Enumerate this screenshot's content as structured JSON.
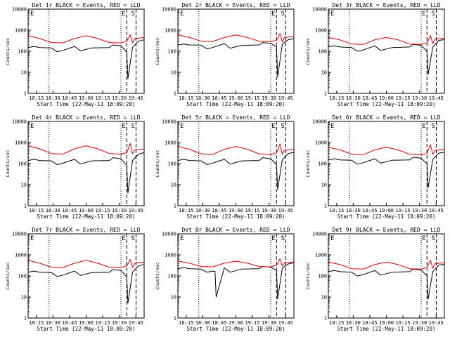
{
  "figure": {
    "colors": {
      "events": "#000000",
      "lld": "#e00000",
      "axes": "#000000",
      "background": "#ffffff"
    }
  },
  "chart_data": [
    {
      "type": "line",
      "title": "Det 1r BLACK = Events, RED = LLD",
      "xlabel": "Start Time (22-May-11 18:09:20)",
      "ylabel": "Counts/sec",
      "xticks": [
        "18:15",
        "18:30",
        "18:45",
        "19:00",
        "19:15",
        "19:30",
        "19:45"
      ],
      "yticks": [
        "1",
        "10",
        "100",
        "1000",
        "10000"
      ],
      "yscale": "log",
      "xlim": [
        0,
        1.0
      ],
      "ylim": [
        1,
        10000
      ],
      "grid": false,
      "legend": "none",
      "annotations": [
        "E",
        "E",
        "S"
      ],
      "series": [
        {
          "name": "Events",
          "color": "#000000",
          "x": [
            0.0,
            0.05,
            0.1,
            0.2,
            0.25,
            0.3,
            0.4,
            0.45,
            0.55,
            0.7,
            0.73,
            0.8,
            0.85,
            0.86,
            0.9,
            0.95,
            1.0
          ],
          "y": [
            150,
            170,
            150,
            145,
            95,
            110,
            170,
            105,
            145,
            150,
            200,
            180,
            90,
            5,
            150,
            300,
            350
          ]
        },
        {
          "name": "LLD",
          "color": "#e00000",
          "x": [
            0.0,
            0.1,
            0.2,
            0.3,
            0.4,
            0.5,
            0.6,
            0.7,
            0.8,
            0.85,
            0.88,
            0.9,
            0.92,
            1.0
          ],
          "y": [
            550,
            400,
            260,
            250,
            400,
            550,
            400,
            260,
            250,
            300,
            600,
            250,
            400,
            450
          ]
        }
      ]
    },
    {
      "type": "line",
      "title": "Det 2r BLACK = Events, RED = LLD",
      "xlabel": "Start Time (22-May-11 18:09:20)",
      "ylabel": "Counts/sec",
      "xticks": [
        "18:15",
        "18:30",
        "18:45",
        "19:00",
        "19:15",
        "19:30",
        "19:45"
      ],
      "yticks": [
        "1",
        "10",
        "100",
        "1000",
        "10000"
      ],
      "yscale": "log",
      "xlim": [
        0,
        1.0
      ],
      "ylim": [
        1,
        10000
      ],
      "grid": false,
      "legend": "none",
      "annotations": [
        "E",
        "E",
        "S"
      ],
      "series": [
        {
          "name": "Events",
          "color": "#000000",
          "x": [
            0.0,
            0.05,
            0.1,
            0.2,
            0.25,
            0.3,
            0.4,
            0.45,
            0.55,
            0.7,
            0.73,
            0.8,
            0.85,
            0.86,
            0.9,
            0.95,
            1.0
          ],
          "y": [
            200,
            220,
            200,
            195,
            130,
            150,
            230,
            140,
            190,
            200,
            260,
            240,
            160,
            6,
            220,
            350,
            400
          ]
        },
        {
          "name": "LLD",
          "color": "#e00000",
          "x": [
            0.0,
            0.1,
            0.2,
            0.3,
            0.4,
            0.5,
            0.6,
            0.7,
            0.8,
            0.85,
            0.88,
            0.9,
            0.92,
            1.0
          ],
          "y": [
            600,
            450,
            300,
            290,
            450,
            600,
            450,
            300,
            290,
            320,
            700,
            280,
            450,
            500
          ]
        }
      ]
    },
    {
      "type": "line",
      "title": "Det 3r BLACK = Events, RED = LLD",
      "xlabel": "Start Time (22-May-11 18:09:20)",
      "ylabel": "Counts/sec",
      "xticks": [
        "18:15",
        "18:30",
        "18:45",
        "19:00",
        "19:15",
        "19:30",
        "19:45"
      ],
      "yticks": [
        "1",
        "10",
        "100",
        "1000",
        "10000"
      ],
      "yscale": "log",
      "xlim": [
        0,
        1.0
      ],
      "ylim": [
        1,
        10000
      ],
      "grid": false,
      "legend": "none",
      "annotations": [
        "E",
        "E",
        "S"
      ],
      "series": [
        {
          "name": "Events",
          "color": "#000000",
          "x": [
            0.0,
            0.05,
            0.1,
            0.2,
            0.25,
            0.3,
            0.4,
            0.45,
            0.55,
            0.7,
            0.73,
            0.8,
            0.85,
            0.86,
            0.9,
            0.95,
            1.0
          ],
          "y": [
            160,
            180,
            160,
            150,
            100,
            115,
            180,
            110,
            150,
            160,
            210,
            190,
            100,
            8,
            160,
            320,
            360
          ]
        },
        {
          "name": "LLD",
          "color": "#e00000",
          "x": [
            0.0,
            0.1,
            0.2,
            0.3,
            0.4,
            0.5,
            0.6,
            0.7,
            0.8,
            0.85,
            0.88,
            0.9,
            0.92,
            1.0
          ],
          "y": [
            450,
            350,
            220,
            210,
            350,
            450,
            350,
            220,
            210,
            250,
            550,
            230,
            380,
            420
          ]
        }
      ]
    },
    {
      "type": "line",
      "title": "Det 4r BLACK = Events, RED = LLD",
      "xlabel": "Start Time (22-May-11 18:09:20)",
      "ylabel": "Counts/sec",
      "xticks": [
        "18:15",
        "18:30",
        "18:45",
        "19:00",
        "19:15",
        "19:30",
        "19:45"
      ],
      "yticks": [
        "1",
        "10",
        "100",
        "1000",
        "10000"
      ],
      "yscale": "log",
      "xlim": [
        0,
        1.0
      ],
      "ylim": [
        1,
        10000
      ],
      "grid": false,
      "legend": "none",
      "annotations": [
        "E",
        "E",
        "S"
      ],
      "series": [
        {
          "name": "Events",
          "color": "#000000",
          "x": [
            0.0,
            0.05,
            0.1,
            0.2,
            0.25,
            0.3,
            0.4,
            0.45,
            0.55,
            0.7,
            0.73,
            0.8,
            0.85,
            0.86,
            0.9,
            0.95,
            1.0
          ],
          "y": [
            140,
            160,
            140,
            135,
            90,
            105,
            160,
            95,
            135,
            140,
            190,
            170,
            80,
            4,
            140,
            280,
            330
          ]
        },
        {
          "name": "LLD",
          "color": "#e00000",
          "x": [
            0.0,
            0.1,
            0.2,
            0.3,
            0.4,
            0.5,
            0.6,
            0.7,
            0.8,
            0.85,
            0.88,
            0.9,
            0.92,
            1.0
          ],
          "y": [
            700,
            500,
            300,
            280,
            500,
            700,
            500,
            300,
            280,
            330,
            900,
            300,
            450,
            500
          ]
        }
      ]
    },
    {
      "type": "line",
      "title": "Det 5r BLACK = Events, RED = LLD",
      "xlabel": "Start Time (22-May-11 18:09:20)",
      "ylabel": "Counts/sec",
      "xticks": [
        "18:15",
        "18:30",
        "18:45",
        "19:00",
        "19:15",
        "19:30",
        "19:45"
      ],
      "yticks": [
        "1",
        "10",
        "100",
        "1000",
        "10000"
      ],
      "yscale": "log",
      "xlim": [
        0,
        1.0
      ],
      "ylim": [
        1,
        10000
      ],
      "grid": false,
      "legend": "none",
      "annotations": [
        "E",
        "E",
        "S"
      ],
      "series": [
        {
          "name": "Events",
          "color": "#000000",
          "x": [
            0.0,
            0.05,
            0.1,
            0.2,
            0.25,
            0.3,
            0.4,
            0.45,
            0.55,
            0.7,
            0.73,
            0.8,
            0.85,
            0.86,
            0.9,
            0.95,
            1.0
          ],
          "y": [
            140,
            160,
            140,
            135,
            90,
            105,
            160,
            95,
            135,
            140,
            190,
            170,
            90,
            6,
            150,
            300,
            340
          ]
        },
        {
          "name": "LLD",
          "color": "#e00000",
          "x": [
            0.0,
            0.1,
            0.2,
            0.3,
            0.4,
            0.5,
            0.6,
            0.7,
            0.8,
            0.85,
            0.88,
            0.9,
            0.92,
            1.0
          ],
          "y": [
            650,
            480,
            290,
            270,
            480,
            650,
            480,
            290,
            270,
            320,
            850,
            290,
            430,
            480
          ]
        }
      ]
    },
    {
      "type": "line",
      "title": "Det 6r BLACK = Events, RED = LLD",
      "xlabel": "Start Time (22-May-11 18:09:20)",
      "ylabel": "Counts/sec",
      "xticks": [
        "18:15",
        "18:30",
        "18:45",
        "19:00",
        "19:15",
        "19:30",
        "19:45"
      ],
      "yticks": [
        "1",
        "10",
        "100",
        "1000",
        "10000"
      ],
      "yscale": "log",
      "xlim": [
        0,
        1.0
      ],
      "ylim": [
        1,
        10000
      ],
      "grid": false,
      "legend": "none",
      "annotations": [
        "E",
        "E",
        "S"
      ],
      "series": [
        {
          "name": "Events",
          "color": "#000000",
          "x": [
            0.0,
            0.05,
            0.1,
            0.2,
            0.25,
            0.3,
            0.4,
            0.45,
            0.55,
            0.7,
            0.73,
            0.8,
            0.85,
            0.86,
            0.9,
            0.95,
            1.0
          ],
          "y": [
            150,
            170,
            150,
            145,
            95,
            110,
            170,
            105,
            145,
            150,
            200,
            180,
            95,
            7,
            155,
            310,
            350
          ]
        },
        {
          "name": "LLD",
          "color": "#e00000",
          "x": [
            0.0,
            0.1,
            0.2,
            0.3,
            0.4,
            0.5,
            0.6,
            0.7,
            0.8,
            0.85,
            0.88,
            0.9,
            0.92,
            1.0
          ],
          "y": [
            600,
            450,
            280,
            260,
            450,
            600,
            450,
            280,
            260,
            310,
            800,
            280,
            420,
            470
          ]
        }
      ]
    },
    {
      "type": "line",
      "title": "Det 7r BLACK = Events, RED = LLD",
      "xlabel": "Start Time (22-May-11 18:09:20)",
      "ylabel": "Counts/sec",
      "xticks": [
        "18:15",
        "18:30",
        "18:45",
        "19:00",
        "19:15",
        "19:30",
        "19:45"
      ],
      "yticks": [
        "1",
        "10",
        "100",
        "1000",
        "10000"
      ],
      "yscale": "log",
      "xlim": [
        0,
        1.0
      ],
      "ylim": [
        1,
        10000
      ],
      "grid": false,
      "legend": "none",
      "annotations": [
        "E",
        "E",
        "S"
      ],
      "series": [
        {
          "name": "Events",
          "color": "#000000",
          "x": [
            0.0,
            0.05,
            0.1,
            0.2,
            0.25,
            0.3,
            0.4,
            0.45,
            0.55,
            0.7,
            0.73,
            0.8,
            0.85,
            0.86,
            0.9,
            0.95,
            1.0
          ],
          "y": [
            150,
            170,
            150,
            145,
            95,
            110,
            170,
            105,
            145,
            150,
            200,
            180,
            90,
            5,
            150,
            300,
            350
          ]
        },
        {
          "name": "LLD",
          "color": "#e00000",
          "x": [
            0.0,
            0.1,
            0.2,
            0.3,
            0.4,
            0.5,
            0.6,
            0.7,
            0.8,
            0.85,
            0.88,
            0.9,
            0.92,
            1.0
          ],
          "y": [
            550,
            400,
            260,
            250,
            400,
            550,
            400,
            260,
            250,
            300,
            600,
            250,
            400,
            450
          ]
        }
      ]
    },
    {
      "type": "line",
      "title": "Det 8r BLACK = Events, RED = LLD",
      "xlabel": "Start Time (22-May-11 18:09:20)",
      "ylabel": "Counts/sec",
      "xticks": [
        "18:15",
        "18:30",
        "18:45",
        "19:00",
        "19:15",
        "19:30",
        "19:45"
      ],
      "yticks": [
        "1",
        "10",
        "100",
        "1000",
        "10000"
      ],
      "yscale": "log",
      "xlim": [
        0,
        1.0
      ],
      "ylim": [
        1,
        10000
      ],
      "grid": false,
      "legend": "none",
      "annotations": [
        "E",
        "E",
        "S"
      ],
      "series": [
        {
          "name": "Events",
          "color": "#000000",
          "x": [
            0.0,
            0.05,
            0.1,
            0.2,
            0.25,
            0.3,
            0.32,
            0.33,
            0.4,
            0.45,
            0.55,
            0.7,
            0.73,
            0.8,
            0.85,
            0.86,
            0.9,
            0.95,
            1.0
          ],
          "y": [
            220,
            250,
            220,
            210,
            150,
            170,
            165,
            10,
            240,
            150,
            210,
            220,
            280,
            260,
            180,
            8,
            230,
            370,
            420
          ]
        },
        {
          "name": "LLD",
          "color": "#e00000",
          "x": [
            0.0,
            0.1,
            0.2,
            0.3,
            0.4,
            0.5,
            0.6,
            0.7,
            0.8,
            0.85,
            0.88,
            0.9,
            0.92,
            1.0
          ],
          "y": [
            500,
            400,
            280,
            270,
            400,
            500,
            400,
            280,
            270,
            320,
            650,
            290,
            420,
            460
          ]
        }
      ]
    },
    {
      "type": "line",
      "title": "Det 9r BLACK = Events, RED = LLD",
      "xlabel": "Start Time (22-May-11 18:09:20)",
      "ylabel": "Counts/sec",
      "xticks": [
        "18:15",
        "18:30",
        "18:45",
        "19:00",
        "19:15",
        "19:30",
        "19:45"
      ],
      "yticks": [
        "1",
        "10",
        "100",
        "1000",
        "10000"
      ],
      "yscale": "log",
      "xlim": [
        0,
        1.0
      ],
      "ylim": [
        1,
        10000
      ],
      "grid": false,
      "legend": "none",
      "annotations": [
        "E",
        "E",
        "S"
      ],
      "series": [
        {
          "name": "Events",
          "color": "#000000",
          "x": [
            0.0,
            0.05,
            0.1,
            0.2,
            0.25,
            0.3,
            0.4,
            0.45,
            0.55,
            0.7,
            0.73,
            0.8,
            0.85,
            0.86,
            0.9,
            0.95,
            1.0
          ],
          "y": [
            160,
            180,
            160,
            150,
            100,
            115,
            180,
            110,
            150,
            160,
            210,
            190,
            100,
            8,
            160,
            320,
            360
          ]
        },
        {
          "name": "LLD",
          "color": "#e00000",
          "x": [
            0.0,
            0.1,
            0.2,
            0.3,
            0.4,
            0.5,
            0.6,
            0.7,
            0.8,
            0.85,
            0.88,
            0.9,
            0.92,
            1.0
          ],
          "y": [
            450,
            350,
            220,
            210,
            350,
            450,
            350,
            220,
            210,
            250,
            550,
            230,
            380,
            420
          ]
        }
      ]
    }
  ]
}
